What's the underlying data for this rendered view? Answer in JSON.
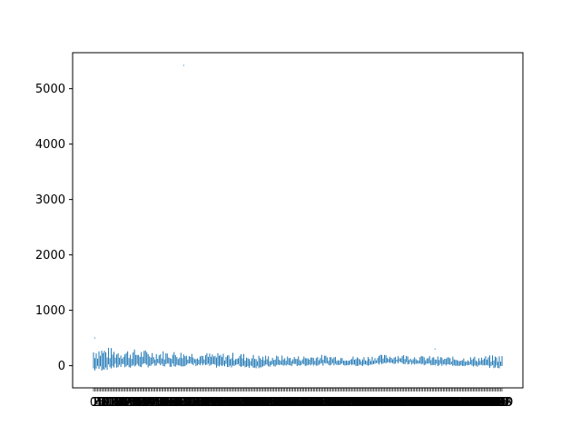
{
  "chart_data": {
    "type": "bar",
    "title": "",
    "xlabel": "",
    "ylabel": "",
    "ylim": [
      -400,
      5650
    ],
    "yticks": [
      0,
      1000,
      2000,
      3000,
      4000,
      5000
    ],
    "ytick_labels": [
      "0",
      "1000",
      "2000",
      "3000",
      "4000",
      "5000"
    ],
    "n_categories": 300,
    "x_tick_labels_note": "dense overlapping category labels, illegible",
    "series_color": "#1f77b4",
    "envelope": [
      {
        "x": 0,
        "low": -120,
        "high": 380
      },
      {
        "x": 15,
        "low": -60,
        "high": 320
      },
      {
        "x": 30,
        "low": -40,
        "high": 300
      },
      {
        "x": 45,
        "low": -30,
        "high": 280
      },
      {
        "x": 60,
        "low": -20,
        "high": 270
      },
      {
        "x": 75,
        "low": -10,
        "high": 250
      },
      {
        "x": 90,
        "low": -40,
        "high": 230
      },
      {
        "x": 105,
        "low": -30,
        "high": 240
      },
      {
        "x": 120,
        "low": -50,
        "high": 200
      },
      {
        "x": 135,
        "low": -20,
        "high": 190
      },
      {
        "x": 150,
        "low": -10,
        "high": 180
      },
      {
        "x": 165,
        "low": 0,
        "high": 200
      },
      {
        "x": 180,
        "low": 0,
        "high": 190
      },
      {
        "x": 195,
        "low": -20,
        "high": 170
      },
      {
        "x": 210,
        "low": 20,
        "high": 200
      },
      {
        "x": 225,
        "low": 30,
        "high": 210
      },
      {
        "x": 240,
        "low": 10,
        "high": 180
      },
      {
        "x": 255,
        "low": -10,
        "high": 170
      },
      {
        "x": 270,
        "low": -10,
        "high": 160
      },
      {
        "x": 285,
        "low": -30,
        "high": 180
      },
      {
        "x": 299,
        "low": -60,
        "high": 200
      }
    ],
    "outliers": [
      {
        "x": 1,
        "value": 500
      },
      {
        "x": 66,
        "value": 5420
      },
      {
        "x": 250,
        "value": 300
      }
    ]
  }
}
